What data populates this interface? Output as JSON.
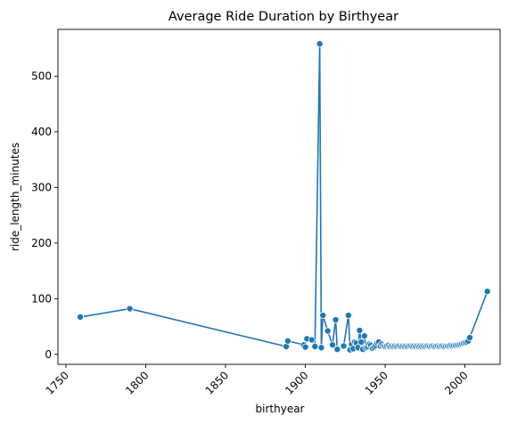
{
  "chart_data": {
    "type": "line",
    "title": "Average Ride Duration by Birthyear",
    "xlabel": "birthyear",
    "ylabel": "ride_length_minutes",
    "xlim": [
      1745,
      2022
    ],
    "ylim": [
      -18,
      584
    ],
    "x_ticks": [
      1750,
      1800,
      1850,
      1900,
      1950,
      2000
    ],
    "x_tick_labels": [
      "1750",
      "1800",
      "1850",
      "1900",
      "1950",
      "2000"
    ],
    "y_ticks": [
      0,
      100,
      200,
      300,
      400,
      500
    ],
    "y_tick_labels": [
      "0",
      "100",
      "200",
      "300",
      "400",
      "500"
    ],
    "grid": false,
    "marker": "circle",
    "color": "#1f77b4",
    "series": [
      {
        "x": [
          1759,
          1790,
          1888,
          1889,
          1899,
          1900,
          1901,
          1904,
          1906,
          1909,
          1910,
          1911,
          1914,
          1917,
          1919,
          1920,
          1924,
          1927,
          1928,
          1929,
          1930,
          1931,
          1932,
          1933,
          1934,
          1935,
          1936,
          1937,
          1938,
          1939,
          1940,
          1941,
          1942,
          1943,
          1944,
          1945,
          1946,
          1947,
          1948,
          1949,
          1950,
          1951,
          1952,
          1953,
          1954,
          1955,
          1956,
          1957,
          1958,
          1959,
          1960,
          1961,
          1962,
          1963,
          1964,
          1965,
          1966,
          1967,
          1968,
          1969,
          1970,
          1971,
          1972,
          1973,
          1974,
          1975,
          1976,
          1977,
          1978,
          1979,
          1980,
          1981,
          1982,
          1983,
          1984,
          1985,
          1986,
          1987,
          1988,
          1989,
          1990,
          1991,
          1992,
          1993,
          1994,
          1995,
          1996,
          1997,
          1998,
          1999,
          2000,
          2001,
          2002,
          2003,
          2014
        ],
        "y": [
          67,
          82,
          14,
          24,
          17,
          13,
          28,
          26,
          14,
          558,
          12,
          70,
          42,
          17,
          62,
          9,
          15,
          70,
          8,
          18,
          10,
          22,
          20,
          12,
          43,
          22,
          9,
          33,
          12,
          14,
          18,
          16,
          11,
          13,
          16,
          20,
          22,
          15,
          18,
          15,
          14,
          15,
          16,
          14,
          15,
          14,
          15,
          14,
          15,
          15,
          14,
          15,
          14,
          15,
          14,
          15,
          15,
          14,
          15,
          14,
          15,
          14,
          15,
          14,
          15,
          14,
          15,
          15,
          14,
          15,
          15,
          14,
          15,
          15,
          14,
          15,
          15,
          14,
          15,
          15,
          15,
          16,
          15,
          16,
          16,
          17,
          17,
          18,
          19,
          20,
          21,
          22,
          24,
          30,
          113
        ]
      }
    ]
  }
}
